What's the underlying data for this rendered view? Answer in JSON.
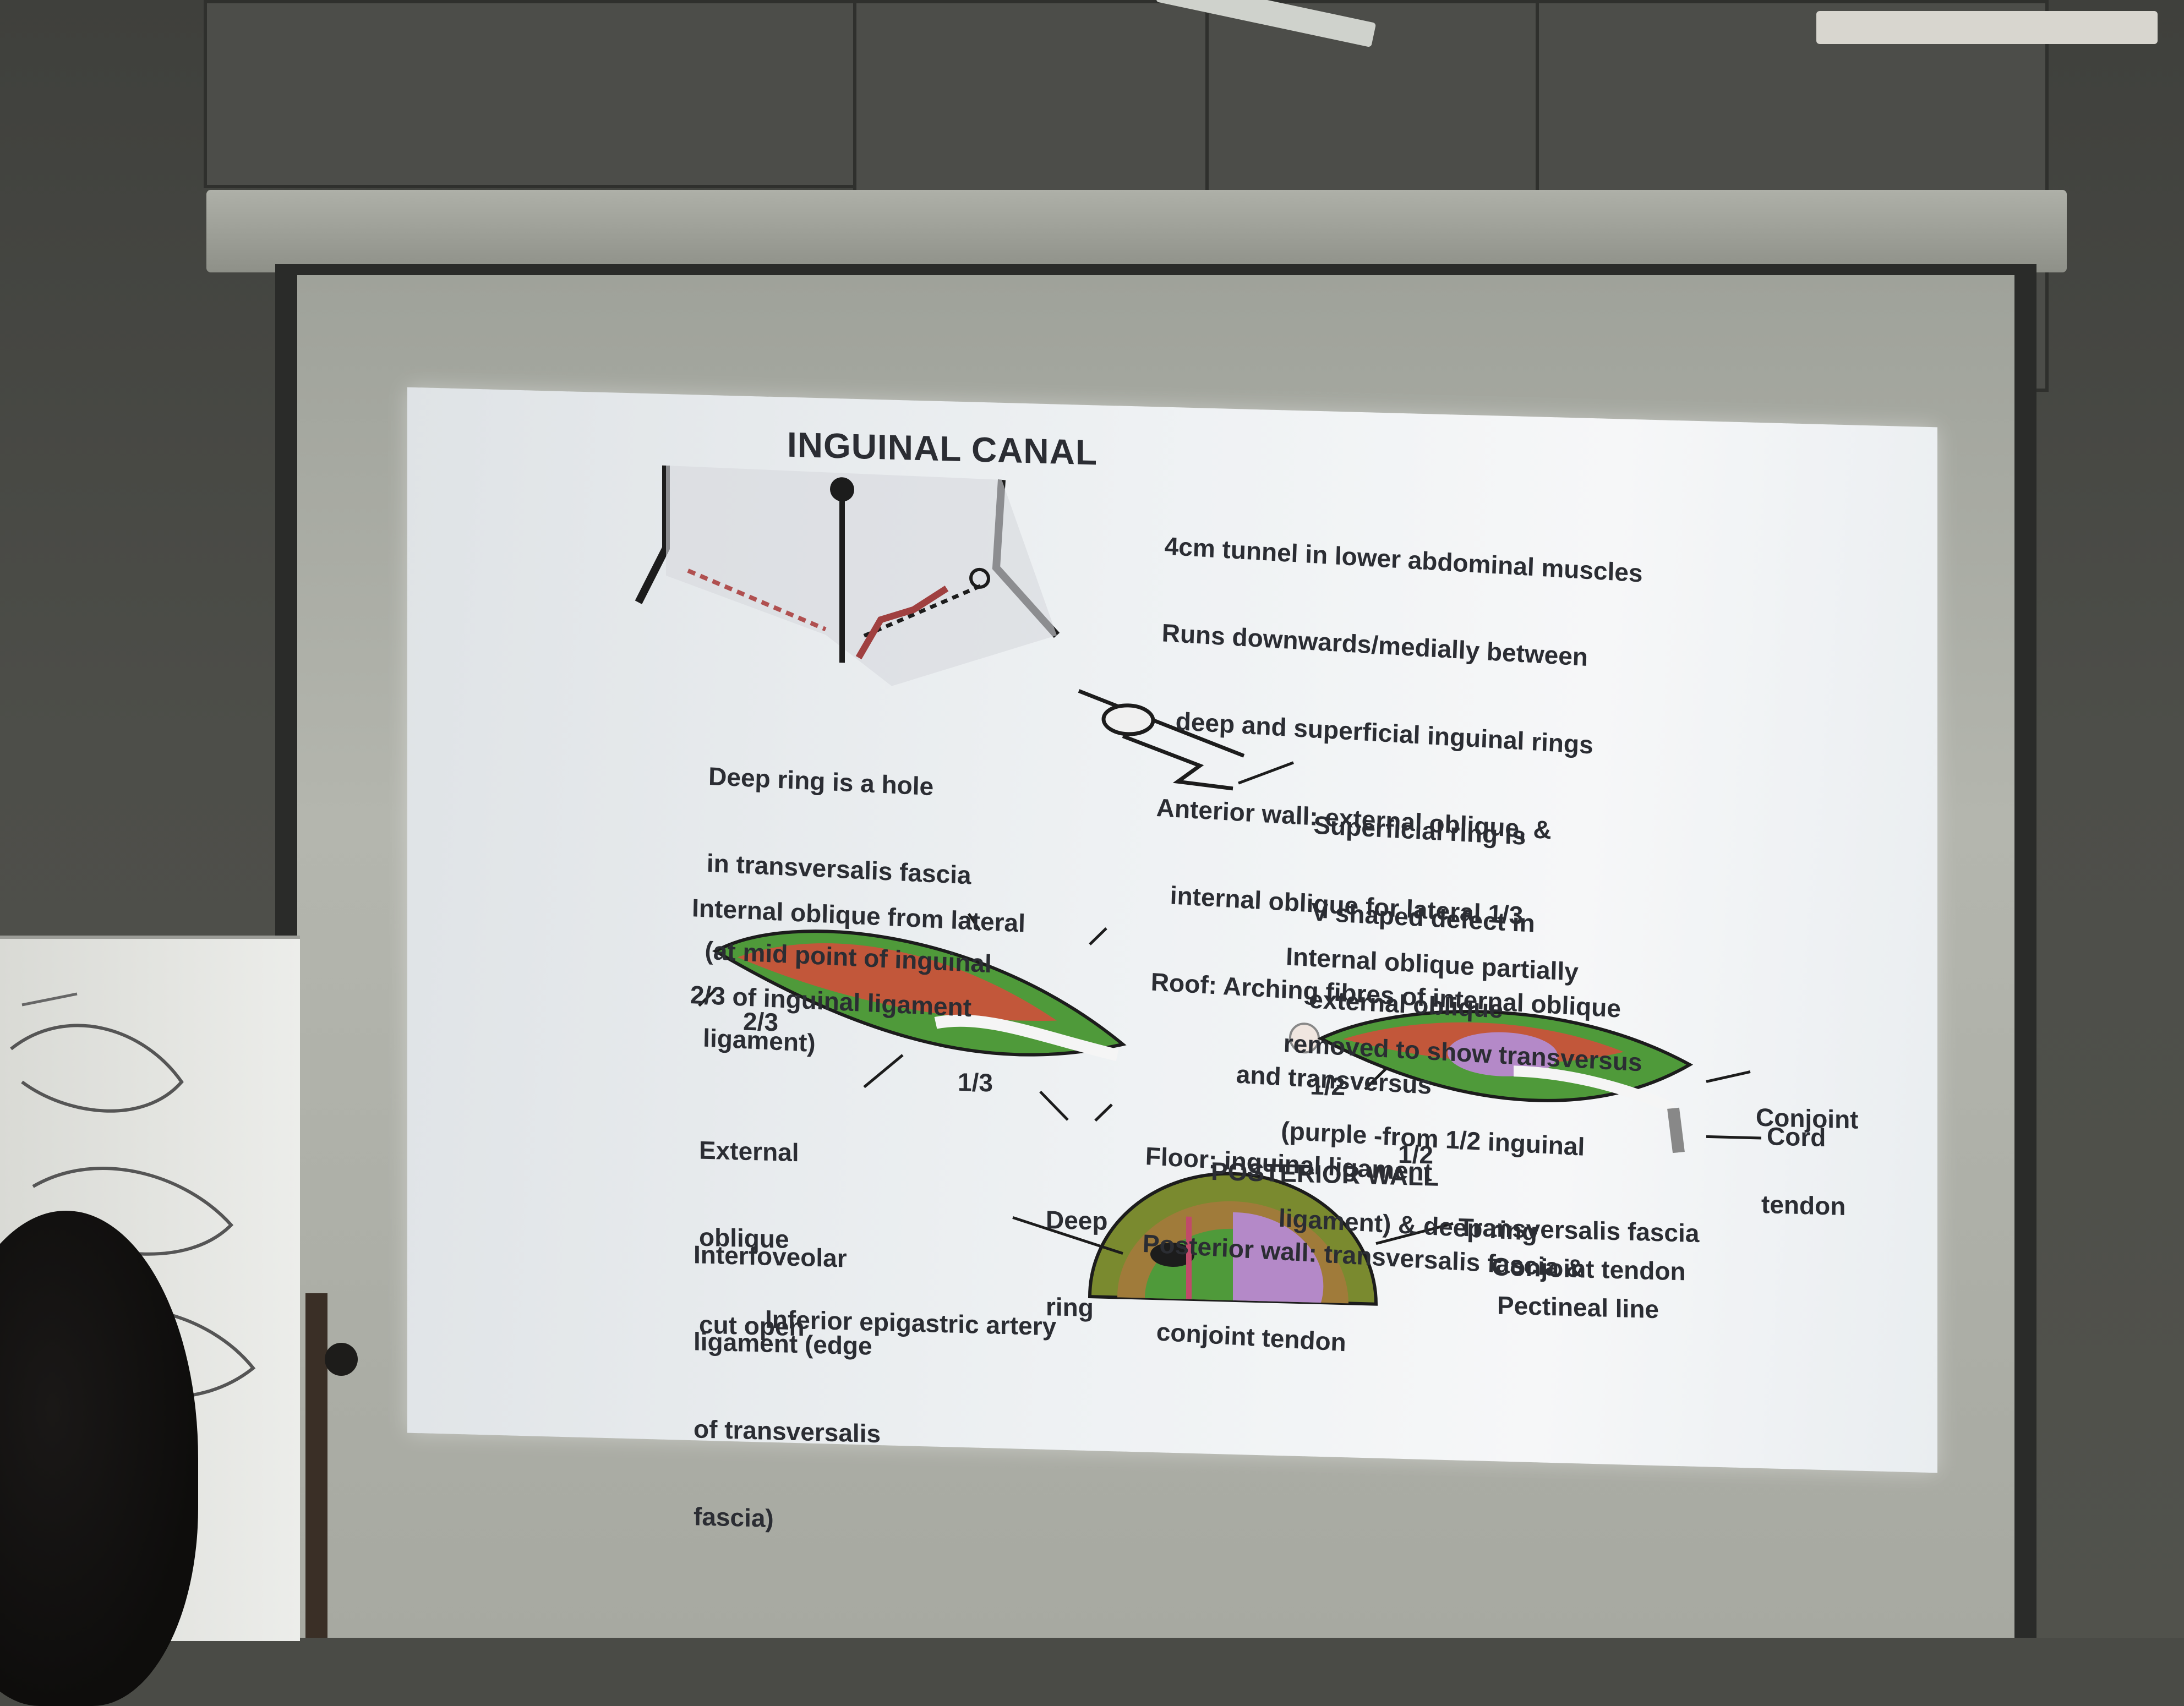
{
  "slide": {
    "title": "INGUINAL CANAL",
    "description_lines": [
      "4cm tunnel in lower abdominal muscles",
      "Runs downwards/medially between",
      "deep and superficial inguinal rings",
      "Anterior wall: external oblique, &",
      "internal oblique for lateral 1/3",
      "Roof: Arching fibres of internal oblique",
      "and transversus",
      "Floor: inguinal ligament",
      "Posterior wall: transversalis fascia &",
      "conjoint tendon"
    ],
    "deep_ring_note": [
      "Deep ring is a hole",
      "in transversalis fascia",
      "(at mid point of inguinal",
      "ligament)"
    ],
    "superficial_ring_note": [
      "Superficial ring is",
      "V shaped defect in",
      "external oblique"
    ],
    "internal_oblique_note": [
      "Internal oblique from lateral",
      "2/3 of inguinal ligament"
    ],
    "transversus_note": [
      "Internal oblique partially",
      "removed to show transversus",
      "(purple -from 1/2 inguinal",
      "ligament) & deep ring"
    ],
    "labels": {
      "two_thirds": "2/3",
      "one_third": "1/3",
      "external_oblique": [
        "External",
        "oblique",
        "cut open"
      ],
      "half_left": "1/2",
      "half_bottom": "1/2",
      "conjoint_tendon": [
        "Conjoint",
        "tendon"
      ],
      "cord": "Cord",
      "deep_ring": [
        "Deep",
        "ring"
      ],
      "posterior_wall": "POSTERIOR WALL",
      "interfoveolar": [
        "Interfoveolar",
        "ligament (edge",
        "of transversalis",
        "fascia)"
      ],
      "inferior_epigastric": "Inferior epigastric artery",
      "transversalis_fascia": "Transversalis fascia",
      "conjoint_tendon_2": "Conjoint tendon",
      "pectineal_line": "Pectineal line"
    }
  },
  "colors": {
    "muscle_green": "#4f9a3a",
    "muscle_red": "#c2573a",
    "transversus_purple": "#b489c8",
    "text": "#2b2d33"
  }
}
